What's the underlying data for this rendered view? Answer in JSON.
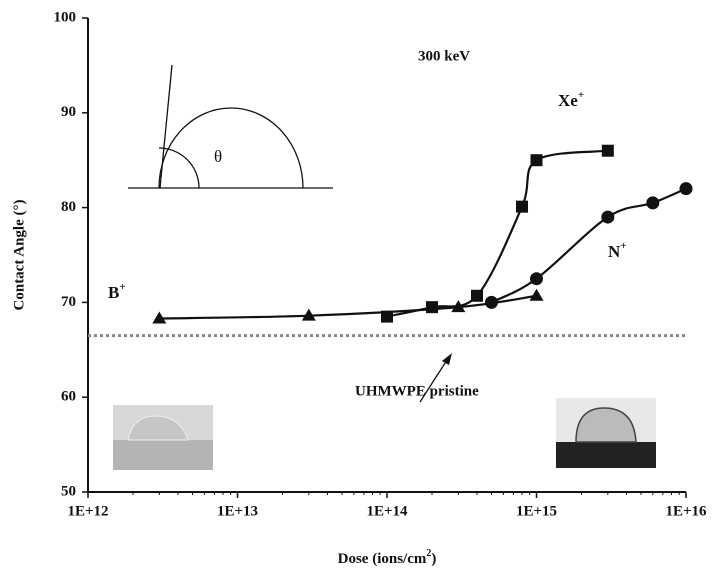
{
  "chart_data": {
    "type": "scatter",
    "x_label": {
      "text": "Dose (ions/cm",
      "sup": "2",
      "tail": ")"
    },
    "y_label": "Contact Angle (°)",
    "log_x": true,
    "xlim": [
      1000000000000.0,
      1e+16
    ],
    "xticks": [
      {
        "value": 1000000000000.0,
        "label": "1E+12"
      },
      {
        "value": 10000000000000.0,
        "label": "1E+13"
      },
      {
        "value": 100000000000000.0,
        "label": "1E+14"
      },
      {
        "value": 1000000000000000.0,
        "label": "1E+15"
      },
      {
        "value": 1e+16,
        "label": "1E+16"
      }
    ],
    "ylim": [
      50,
      100
    ],
    "yticks": [
      50,
      60,
      70,
      80,
      90,
      100
    ],
    "series": [
      {
        "name": "Xe",
        "name_sup": "+",
        "marker": "square",
        "color": "#111111",
        "x": [
          100000000000000.0,
          200000000000000.0,
          400000000000000.0,
          800000000000000.0,
          1000000000000000.0,
          3000000000000000.0
        ],
        "values": [
          68.5,
          69.5,
          70.7,
          80.1,
          85,
          86
        ]
      },
      {
        "name": "N",
        "name_sup": "+",
        "marker": "circle",
        "color": "#111111",
        "x": [
          500000000000000.0,
          1000000000000000.0,
          3000000000000000.0,
          6000000000000000.0,
          1e+16
        ],
        "values": [
          70,
          72.5,
          79,
          80.5,
          82
        ]
      },
      {
        "name": "B",
        "name_sup": "+",
        "marker": "triangle",
        "color": "#111111",
        "x": [
          3000000000000.0,
          30000000000000.0,
          300000000000000.0,
          1000000000000000.0
        ],
        "values": [
          68.3,
          68.6,
          69.5,
          70.7
        ]
      }
    ],
    "reference_line": {
      "label": "UHMWPE pristine",
      "value": 66.5,
      "color": "#888888"
    },
    "annotation": "300 keV",
    "diagram_label": "θ"
  }
}
